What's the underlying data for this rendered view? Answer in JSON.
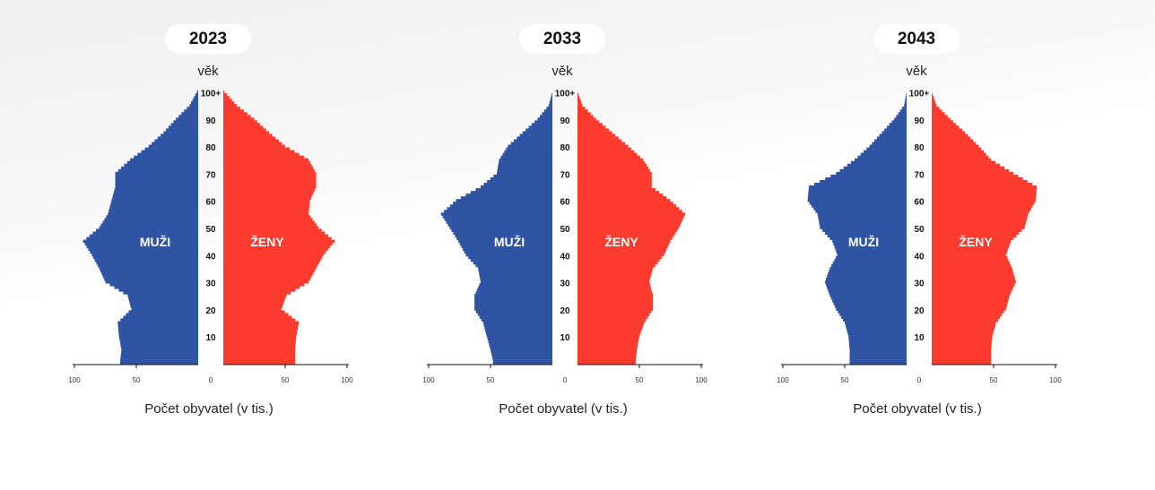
{
  "colors": {
    "male": "#2e54a3",
    "female": "#fc3b2e",
    "axis": "#111111"
  },
  "ylabel": "věk",
  "xlabel": "Počet obyvatel (v tis.)",
  "male_label": "MUŽI",
  "female_label": "ŽENY",
  "chart_data": [
    {
      "type": "bar",
      "title": "2023",
      "xlabel": "Počet obyvatel (v tis.)",
      "ylabel": "věk",
      "series": [
        {
          "name": "MUŽI",
          "ages": [
            1,
            5,
            10,
            15,
            20,
            25,
            30,
            35,
            40,
            45,
            50,
            55,
            60,
            65,
            70,
            75,
            80,
            85,
            90,
            95,
            100
          ],
          "values": [
            63,
            62,
            64,
            65,
            54,
            57,
            75,
            80,
            86,
            93,
            80,
            73,
            70,
            67,
            67,
            55,
            40,
            28,
            18,
            7,
            1
          ]
        },
        {
          "name": "ŽENY",
          "ages": [
            1,
            5,
            10,
            15,
            20,
            25,
            30,
            35,
            40,
            45,
            50,
            55,
            60,
            65,
            70,
            75,
            80,
            85,
            90,
            95,
            100
          ],
          "values": [
            58,
            58,
            59,
            61,
            47,
            51,
            69,
            75,
            81,
            90,
            77,
            69,
            70,
            75,
            75,
            69,
            50,
            37,
            25,
            11,
            1
          ]
        }
      ],
      "yticks": [
        "10",
        "20",
        "30",
        "40",
        "50",
        "60",
        "70",
        "80",
        "90",
        "100+"
      ],
      "xticks": [
        "100",
        "50",
        "0",
        "50",
        "100"
      ],
      "xlim": [
        -100,
        100
      ],
      "ylim": [
        0,
        101
      ]
    },
    {
      "type": "bar",
      "title": "2033",
      "xlabel": "Počet obyvatel (v tis.)",
      "ylabel": "věk",
      "series": [
        {
          "name": "MUŽI",
          "ages": [
            1,
            5,
            10,
            15,
            20,
            25,
            30,
            35,
            40,
            45,
            50,
            55,
            60,
            65,
            70,
            75,
            80,
            85,
            90,
            95,
            100
          ],
          "values": [
            48,
            50,
            53,
            56,
            63,
            63,
            58,
            60,
            70,
            76,
            83,
            90,
            78,
            58,
            45,
            43,
            36,
            24,
            12,
            3,
            0
          ]
        },
        {
          "name": "ŽENY",
          "ages": [
            1,
            5,
            10,
            15,
            20,
            25,
            30,
            35,
            40,
            45,
            50,
            55,
            60,
            65,
            70,
            75,
            80,
            85,
            90,
            95,
            100
          ],
          "values": [
            47,
            48,
            50,
            54,
            61,
            61,
            58,
            61,
            70,
            75,
            82,
            87,
            75,
            60,
            60,
            53,
            41,
            28,
            15,
            4,
            0
          ]
        }
      ],
      "yticks": [
        "10",
        "20",
        "30",
        "40",
        "50",
        "60",
        "70",
        "80",
        "90",
        "100+"
      ],
      "xticks": [
        "100",
        "50",
        "0",
        "50",
        "100"
      ],
      "xlim": [
        -100,
        100
      ],
      "ylim": [
        0,
        101
      ]
    },
    {
      "type": "bar",
      "title": "2043",
      "xlabel": "Počet obyvatel (v tis.)",
      "ylabel": "věk",
      "series": [
        {
          "name": "MUŽI",
          "ages": [
            1,
            5,
            10,
            15,
            20,
            25,
            30,
            35,
            40,
            45,
            50,
            55,
            60,
            65,
            70,
            75,
            80,
            85,
            90,
            95,
            100
          ],
          "values": [
            46,
            46,
            47,
            50,
            57,
            62,
            66,
            62,
            56,
            60,
            70,
            72,
            80,
            79,
            57,
            42,
            30,
            20,
            10,
            2,
            0
          ]
        },
        {
          "name": "ŽENY",
          "ages": [
            1,
            5,
            10,
            15,
            20,
            25,
            30,
            35,
            40,
            45,
            50,
            55,
            60,
            65,
            70,
            75,
            80,
            85,
            90,
            95,
            100
          ],
          "values": [
            48,
            48,
            49,
            52,
            60,
            63,
            68,
            65,
            60,
            64,
            75,
            78,
            84,
            85,
            66,
            48,
            38,
            27,
            15,
            4,
            0
          ]
        }
      ],
      "yticks": [
        "10",
        "20",
        "30",
        "40",
        "50",
        "60",
        "70",
        "80",
        "90",
        "100+"
      ],
      "xticks": [
        "100",
        "50",
        "0",
        "50",
        "100"
      ],
      "xlim": [
        -100,
        100
      ],
      "ylim": [
        0,
        101
      ]
    }
  ]
}
